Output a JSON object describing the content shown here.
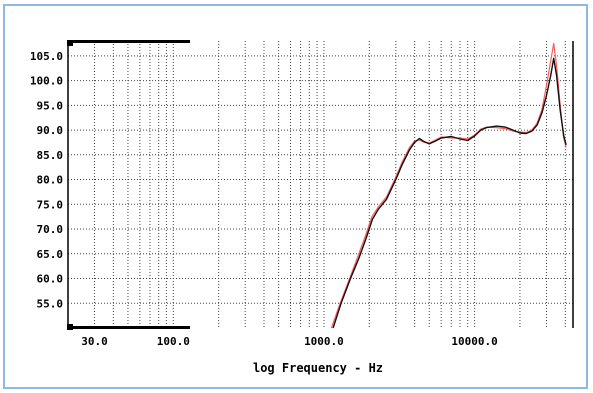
{
  "chart_data": {
    "type": "line",
    "title": "",
    "xlabel": "log Frequency - Hz",
    "ylabel": "",
    "xscale": "log",
    "xlim": [
      20,
      45000
    ],
    "ylim": [
      50,
      108
    ],
    "grid": true,
    "x_tick_labels": [
      {
        "value": 30,
        "label": "30.0"
      },
      {
        "value": 100,
        "label": "100.0"
      },
      {
        "value": 1000,
        "label": "1000.0"
      },
      {
        "value": 10000,
        "label": "10000.0"
      }
    ],
    "y_tick_labels": [
      {
        "value": 55,
        "label": "55.0"
      },
      {
        "value": 60,
        "label": "60.0"
      },
      {
        "value": 65,
        "label": "65.0"
      },
      {
        "value": 70,
        "label": "70.0"
      },
      {
        "value": 75,
        "label": "75.0"
      },
      {
        "value": 80,
        "label": "80.0"
      },
      {
        "value": 85,
        "label": "85.0"
      },
      {
        "value": 90,
        "label": "90.0"
      },
      {
        "value": 95,
        "label": "95.0"
      },
      {
        "value": 100,
        "label": "100.0"
      },
      {
        "value": 105,
        "label": "105.0"
      }
    ],
    "series": [
      {
        "color": "#111111",
        "points": [
          [
            1150,
            50
          ],
          [
            1300,
            55
          ],
          [
            1500,
            60
          ],
          [
            1700,
            64
          ],
          [
            1900,
            68
          ],
          [
            2100,
            72
          ],
          [
            2300,
            74
          ],
          [
            2600,
            76
          ],
          [
            3000,
            80
          ],
          [
            3300,
            83
          ],
          [
            3700,
            86
          ],
          [
            4000,
            87.5
          ],
          [
            4300,
            88.3
          ],
          [
            4600,
            87.7
          ],
          [
            5000,
            87.2
          ],
          [
            5500,
            87.8
          ],
          [
            6000,
            88.4
          ],
          [
            7000,
            88.7
          ],
          [
            8000,
            88.2
          ],
          [
            9000,
            87.9
          ],
          [
            10000,
            88.8
          ],
          [
            11000,
            90
          ],
          [
            12000,
            90.5
          ],
          [
            14000,
            90.8
          ],
          [
            16000,
            90.6
          ],
          [
            18000,
            90
          ],
          [
            20000,
            89.4
          ],
          [
            22000,
            89.3
          ],
          [
            24000,
            89.8
          ],
          [
            26000,
            91
          ],
          [
            28000,
            93.5
          ],
          [
            30000,
            97
          ],
          [
            32000,
            101
          ],
          [
            33500,
            104.5
          ],
          [
            35000,
            101
          ],
          [
            37000,
            94
          ],
          [
            39000,
            89
          ],
          [
            40500,
            87
          ]
        ]
      },
      {
        "color": "#ff5a5a",
        "points": [
          [
            1120,
            50
          ],
          [
            1280,
            55
          ],
          [
            1480,
            60
          ],
          [
            1680,
            64.5
          ],
          [
            1880,
            68.5
          ],
          [
            2080,
            72.5
          ],
          [
            2300,
            74.5
          ],
          [
            2600,
            76.5
          ],
          [
            3000,
            80.5
          ],
          [
            3300,
            83.5
          ],
          [
            3700,
            86.5
          ],
          [
            4000,
            87.8
          ],
          [
            4300,
            88
          ],
          [
            4600,
            87.5
          ],
          [
            5000,
            87.4
          ],
          [
            5500,
            88
          ],
          [
            6000,
            88.6
          ],
          [
            7000,
            88.4
          ],
          [
            8000,
            88.4
          ],
          [
            9000,
            88.2
          ],
          [
            10000,
            89
          ],
          [
            11000,
            90.2
          ],
          [
            12000,
            90.6
          ],
          [
            14000,
            90.5
          ],
          [
            16000,
            90.3
          ],
          [
            18000,
            89.8
          ],
          [
            20000,
            89.6
          ],
          [
            22000,
            89.5
          ],
          [
            24000,
            90
          ],
          [
            26000,
            91.4
          ],
          [
            28000,
            94.2
          ],
          [
            30000,
            99
          ],
          [
            32000,
            104
          ],
          [
            33500,
            107.5
          ],
          [
            35000,
            103
          ],
          [
            37000,
            95
          ],
          [
            39000,
            88.5
          ],
          [
            40500,
            86.5
          ]
        ]
      }
    ]
  }
}
